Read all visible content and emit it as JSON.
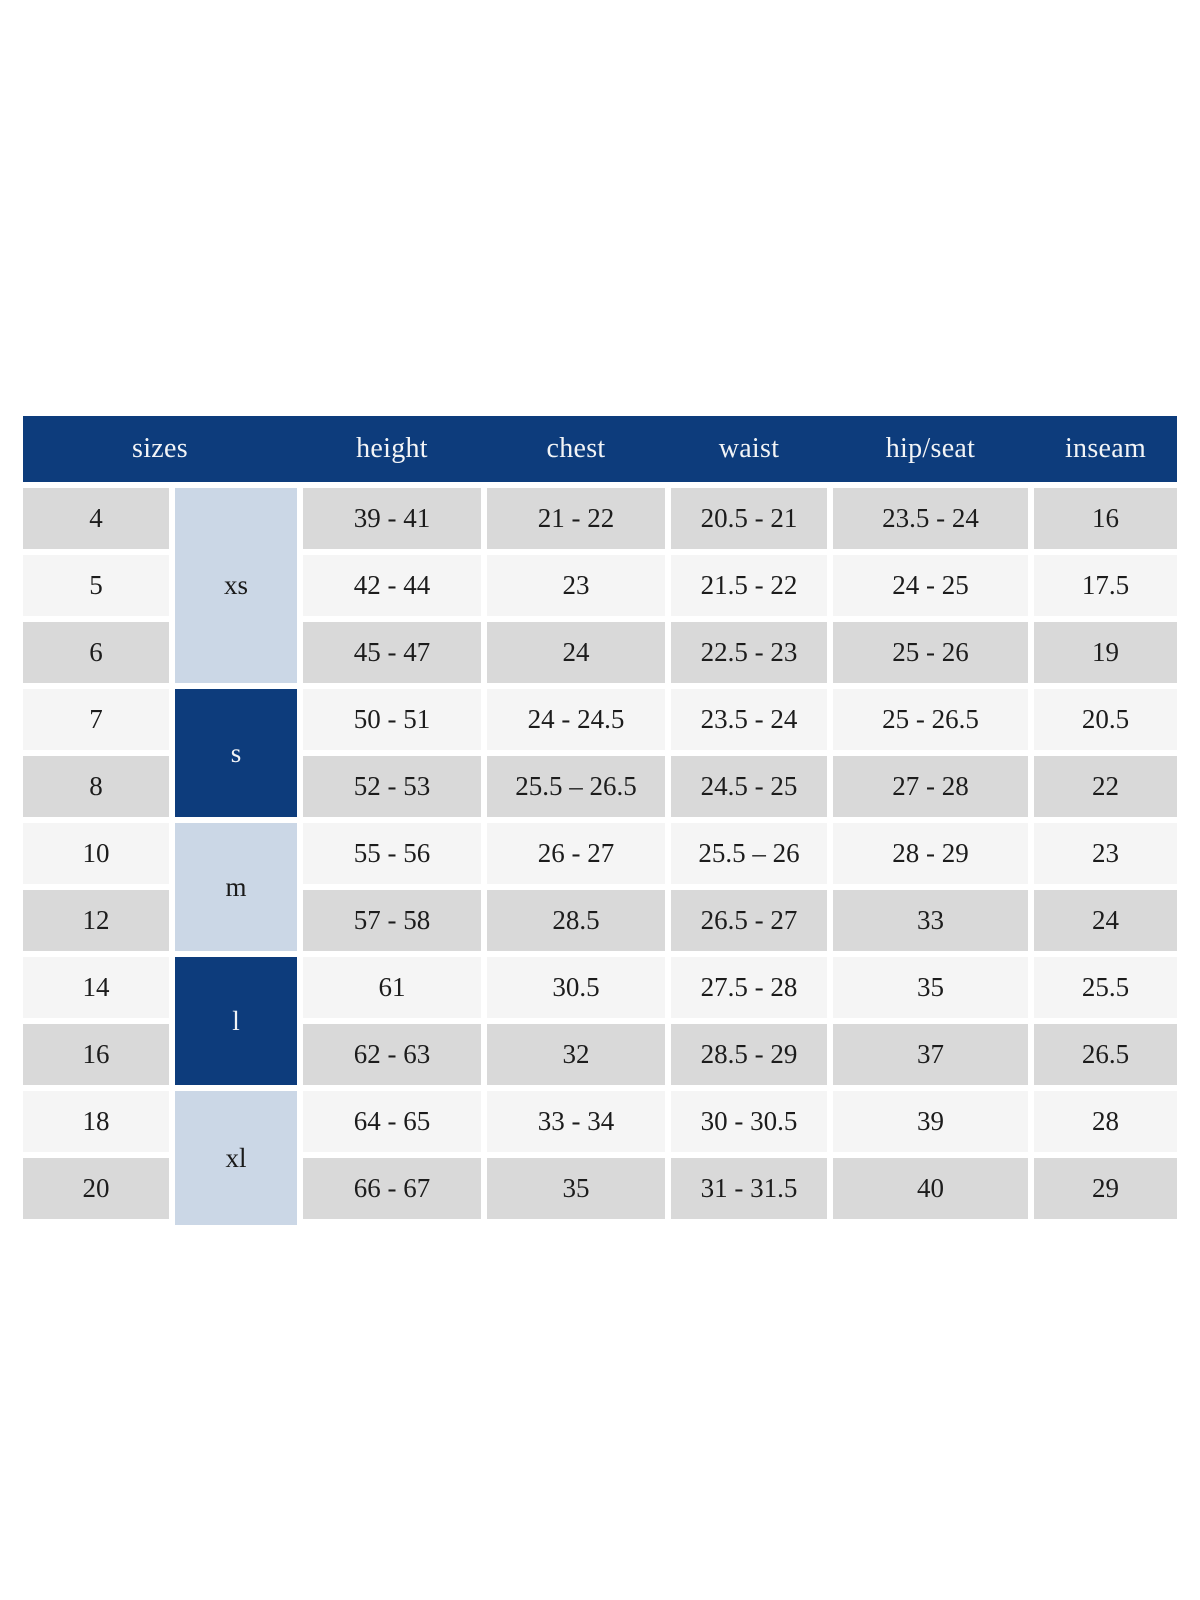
{
  "colors": {
    "header_bg": "#0d3c7c",
    "header_text": "#f2f4f6",
    "group_light_bg": "#cbd7e6",
    "group_dark_bg": "#0d3c7c",
    "row_odd_bg": "#d9d9d9",
    "row_even_bg": "#f5f5f5",
    "body_text": "#1c1c1c",
    "page_bg": "#ffffff"
  },
  "table": {
    "header": {
      "columns": [
        "sizes",
        "height",
        "chest",
        "waist",
        "hip/seat",
        "inseam"
      ]
    },
    "groups": [
      {
        "label": "xs",
        "rows": [
          {
            "size": "4",
            "height": "39 - 41",
            "chest": "21 - 22",
            "waist": "20.5 - 21",
            "hip_seat": "23.5 - 24",
            "inseam": "16"
          },
          {
            "size": "5",
            "height": "42 - 44",
            "chest": "23",
            "waist": "21.5 - 22",
            "hip_seat": "24 - 25",
            "inseam": "17.5"
          },
          {
            "size": "6",
            "height": "45 - 47",
            "chest": "24",
            "waist": "22.5 - 23",
            "hip_seat": "25 - 26",
            "inseam": "19"
          }
        ]
      },
      {
        "label": "s",
        "rows": [
          {
            "size": "7",
            "height": "50 - 51",
            "chest": "24 - 24.5",
            "waist": "23.5 - 24",
            "hip_seat": "25 - 26.5",
            "inseam": "20.5"
          },
          {
            "size": "8",
            "height": "52 - 53",
            "chest": "25.5 – 26.5",
            "waist": "24.5 - 25",
            "hip_seat": "27 - 28",
            "inseam": "22"
          }
        ]
      },
      {
        "label": "m",
        "rows": [
          {
            "size": "10",
            "height": "55 - 56",
            "chest": "26 - 27",
            "waist": "25.5 – 26",
            "hip_seat": "28 - 29",
            "inseam": "23"
          },
          {
            "size": "12",
            "height": "57 - 58",
            "chest": "28.5",
            "waist": "26.5 - 27",
            "hip_seat": "33",
            "inseam": "24"
          }
        ]
      },
      {
        "label": "l",
        "rows": [
          {
            "size": "14",
            "height": "61",
            "chest": "30.5",
            "waist": "27.5 - 28",
            "hip_seat": "35",
            "inseam": "25.5"
          },
          {
            "size": "16",
            "height": "62 - 63",
            "chest": "32",
            "waist": "28.5 - 29",
            "hip_seat": "37",
            "inseam": "26.5"
          }
        ]
      },
      {
        "label": "xl",
        "rows": [
          {
            "size": "18",
            "height": "64 - 65",
            "chest": "33 - 34",
            "waist": "30 - 30.5",
            "hip_seat": "39",
            "inseam": "28"
          },
          {
            "size": "20",
            "height": "66 - 67",
            "chest": "35",
            "waist": "31 - 31.5",
            "hip_seat": "40",
            "inseam": "29"
          }
        ]
      }
    ]
  }
}
